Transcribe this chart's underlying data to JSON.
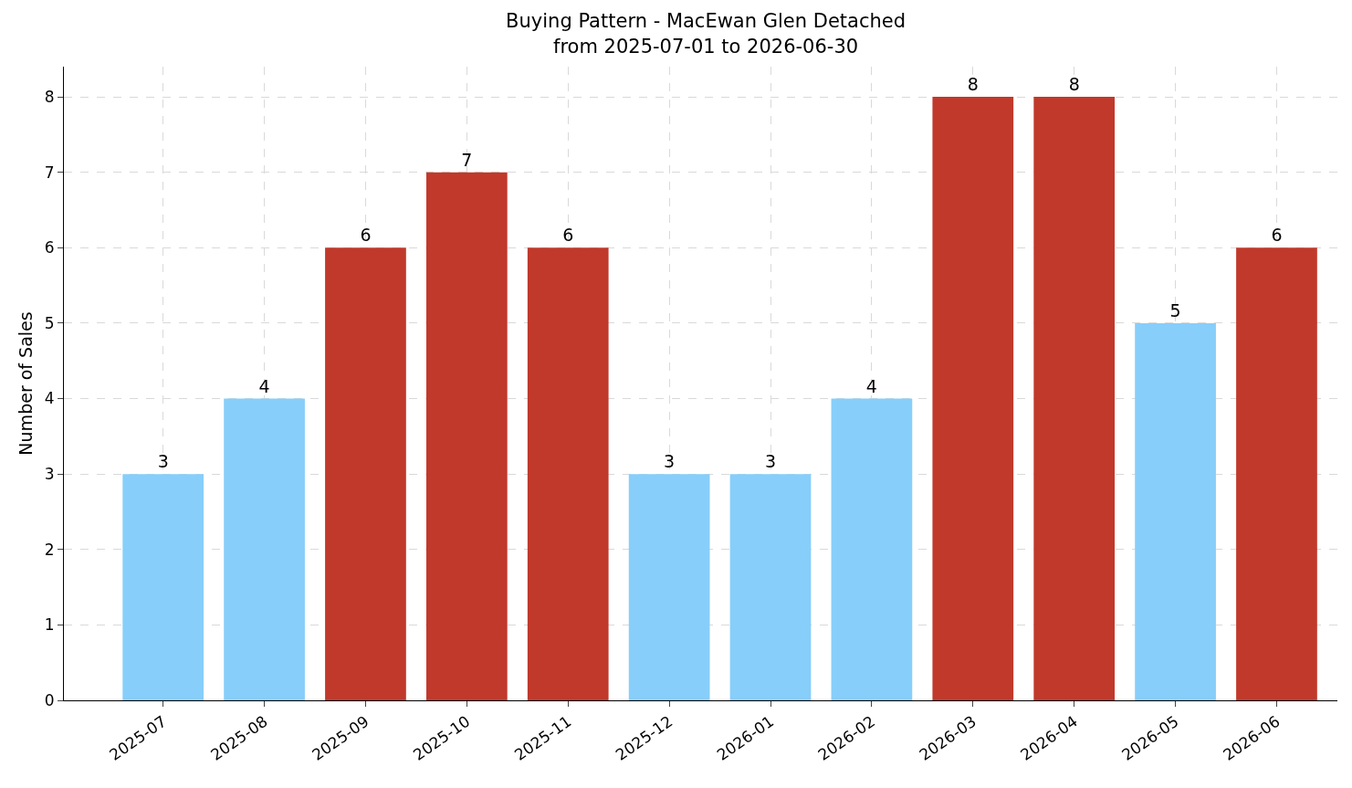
{
  "chart_data": {
    "type": "bar",
    "title": "Buying Pattern - MacEwan Glen Detached",
    "subtitle": "from 2025-07-01 to 2026-06-30",
    "ylabel": "Number of Sales",
    "categories": [
      "2025-07",
      "2025-08",
      "2025-09",
      "2025-10",
      "2025-11",
      "2025-12",
      "2026-01",
      "2026-02",
      "2026-03",
      "2026-04",
      "2026-05",
      "2026-06"
    ],
    "values": [
      3,
      4,
      6,
      7,
      6,
      3,
      3,
      4,
      8,
      8,
      5,
      6
    ],
    "colors": [
      "#87cefa",
      "#87cefa",
      "#c0392b",
      "#c0392b",
      "#c0392b",
      "#87cefa",
      "#87cefa",
      "#87cefa",
      "#c0392b",
      "#c0392b",
      "#87cefa",
      "#c0392b"
    ],
    "ylim": [
      0,
      8.4
    ],
    "yticks": [
      0,
      1,
      2,
      3,
      4,
      5,
      6,
      7,
      8
    ],
    "grid": true,
    "data_labels": true
  }
}
